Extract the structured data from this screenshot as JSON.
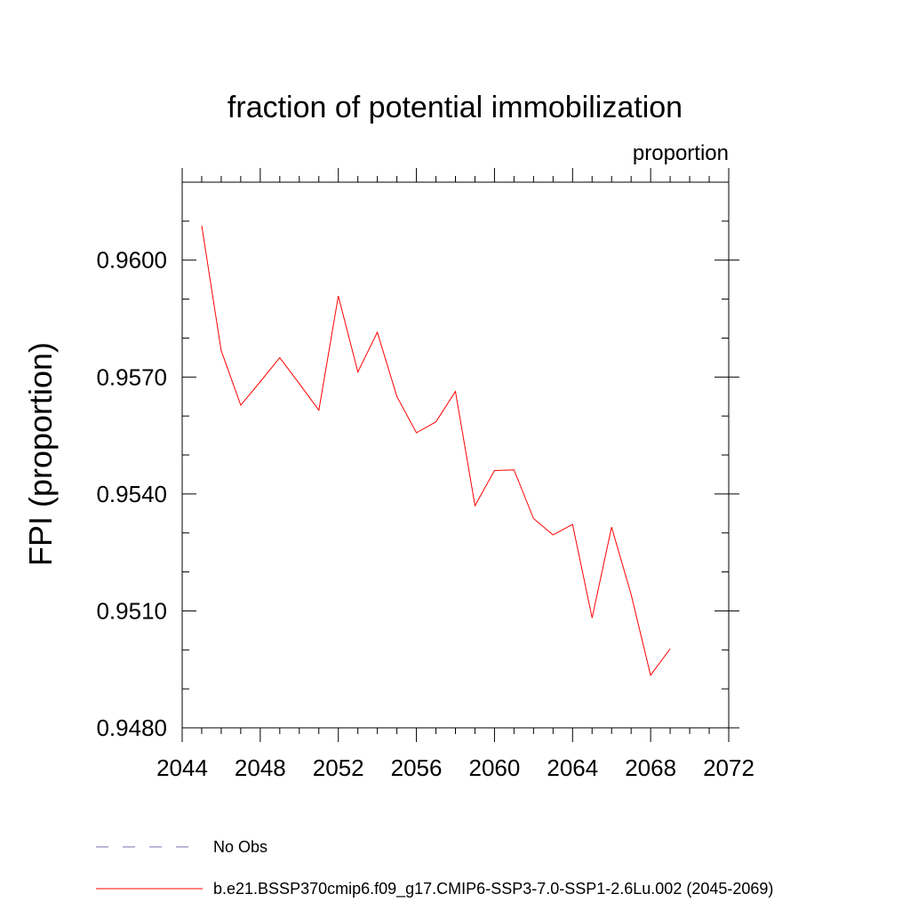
{
  "chart_data": {
    "type": "line",
    "title": "fraction of potential immobilization",
    "units_label": "proportion",
    "ylabel": "FPI  (proportion)",
    "xlabel": "",
    "xlim": [
      2044,
      2072
    ],
    "ylim": [
      0.948,
      0.962
    ],
    "x_ticks": [
      2044,
      2048,
      2052,
      2056,
      2060,
      2064,
      2068,
      2072
    ],
    "x_tick_labels": [
      "2044",
      "2048",
      "2052",
      "2056",
      "2060",
      "2064",
      "2068",
      "2072"
    ],
    "y_ticks": [
      0.948,
      0.951,
      0.954,
      0.957,
      0.96
    ],
    "y_tick_labels": [
      "0.9480",
      "0.9510",
      "0.9540",
      "0.9570",
      "0.9600"
    ],
    "grid": false,
    "legend_position": "bottom",
    "series": [
      {
        "name": "b.e21.BSSP370cmip6.f09_g17.CMIP6-SSP3-7.0-SSP1-2.6Lu.002 (2045-2069)",
        "color": "#ff0000",
        "line_style": "solid",
        "x": [
          2045,
          2046,
          2047,
          2048,
          2049,
          2050,
          2051,
          2052,
          2053,
          2054,
          2055,
          2056,
          2057,
          2058,
          2059,
          2060,
          2061,
          2062,
          2063,
          2064,
          2065,
          2066,
          2067,
          2068,
          2069
        ],
        "y": [
          0.96088,
          0.95768,
          0.95628,
          0.95688,
          0.9575,
          0.95683,
          0.95615,
          0.95908,
          0.95713,
          0.95815,
          0.9565,
          0.95557,
          0.95585,
          0.95663,
          0.9537,
          0.9546,
          0.95462,
          0.95337,
          0.95295,
          0.95322,
          0.95082,
          0.95315,
          0.95142,
          0.94935,
          0.95003
        ]
      }
    ],
    "legend": [
      {
        "label": "No Obs",
        "color": "#7b6fb0",
        "line_style": "dashed"
      },
      {
        "label": "b.e21.BSSP370cmip6.f09_g17.CMIP6-SSP3-7.0-SSP1-2.6Lu.002 (2045-2069)",
        "color": "#ff0000",
        "line_style": "solid"
      }
    ]
  }
}
